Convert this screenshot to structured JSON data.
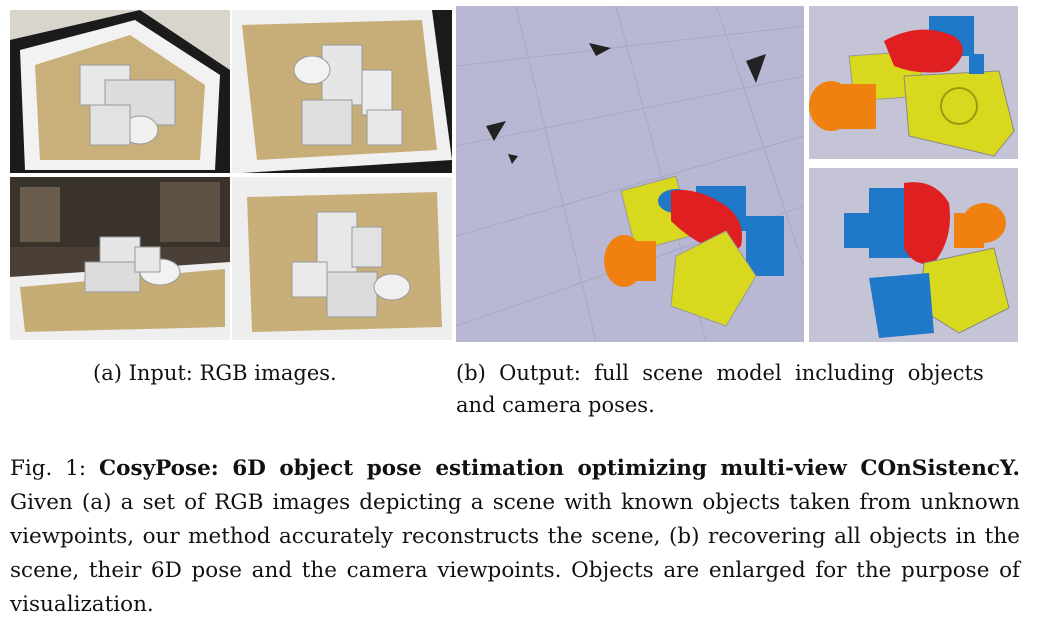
{
  "figure": {
    "subcaption_a": "(a) Input: RGB images.",
    "subcaption_b_line1": "(b)  Output:  full  scene  model  including  objects",
    "subcaption_b_line2": "and camera poses.",
    "caption_label": "Fig. 1:",
    "caption_title": "CosyPose: 6D object pose estimation optimizing multi-view COnSistencY.",
    "caption_body": "Given (a) a set of RGB images depicting a scene with known objects taken from unknown viewpoints, our method accurately reconstructs the scene, (b) recovering all objects in the scene, their 6D pose and the camera viewpoints. Objects are enlarged for the purpose of visualization."
  },
  "colors": {
    "wood": "#c9b07a",
    "object_red": "#e02020",
    "object_blue": "#1f78c8",
    "object_yellow": "#d8d81f",
    "object_orange": "#f08010",
    "render_bg": "#b8b8d4"
  }
}
